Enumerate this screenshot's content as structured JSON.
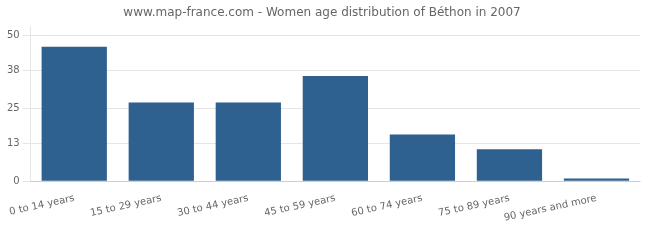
{
  "chart_data": {
    "type": "bar",
    "title": "www.map-france.com - Women age distribution of Béthon in 2007",
    "categories": [
      "0 to 14 years",
      "15 to 29 years",
      "30 to 44 years",
      "45 to 59 years",
      "60 to 74 years",
      "75 to 89 years",
      "90 years and more"
    ],
    "values": [
      46,
      27,
      27,
      36,
      16,
      11,
      1
    ],
    "color": "#2e6090",
    "ylim": [
      0,
      53
    ],
    "yticks": [
      0,
      13,
      25,
      38,
      50
    ],
    "grid": true
  }
}
